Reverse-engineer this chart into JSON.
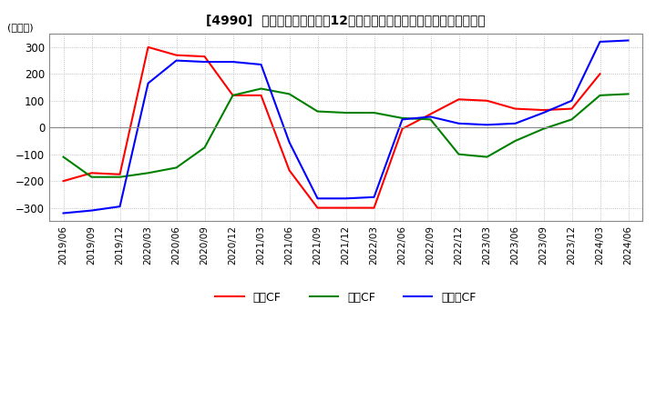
{
  "title": "[4990]  キャッシュフローの12か月移動合計の対前年同期増減額の推移",
  "ylabel": "(百万円)",
  "ylim": [
    -350,
    350
  ],
  "yticks": [
    -300,
    -200,
    -100,
    0,
    100,
    200,
    300
  ],
  "x_labels": [
    "2019/06",
    "2019/09",
    "2019/12",
    "2020/03",
    "2020/06",
    "2020/09",
    "2020/12",
    "2021/03",
    "2021/06",
    "2021/09",
    "2021/12",
    "2022/03",
    "2022/06",
    "2022/09",
    "2022/12",
    "2023/03",
    "2023/06",
    "2023/09",
    "2023/12",
    "2024/03",
    "2024/06"
  ],
  "operating_cf": [
    -200,
    -170,
    -175,
    300,
    270,
    265,
    120,
    120,
    -160,
    -300,
    -300,
    -300,
    -5,
    50,
    105,
    100,
    70,
    65,
    70,
    200,
    null
  ],
  "investing_cf": [
    -110,
    -185,
    -185,
    -170,
    -150,
    -75,
    120,
    145,
    125,
    60,
    55,
    55,
    35,
    30,
    -100,
    -110,
    -50,
    -5,
    30,
    120,
    125
  ],
  "free_cf": [
    -320,
    -310,
    -295,
    165,
    250,
    245,
    245,
    235,
    -55,
    -265,
    -265,
    -260,
    30,
    40,
    15,
    10,
    15,
    55,
    100,
    320,
    325
  ],
  "operating_color": "#ff0000",
  "investing_color": "#008000",
  "free_cf_color": "#0000ff",
  "line_width": 1.5,
  "legend_labels": [
    "営業CF",
    "投資CF",
    "フリーCF"
  ],
  "background_color": "#ffffff",
  "grid_color": "#b0b0b0",
  "grid_style": "dotted"
}
